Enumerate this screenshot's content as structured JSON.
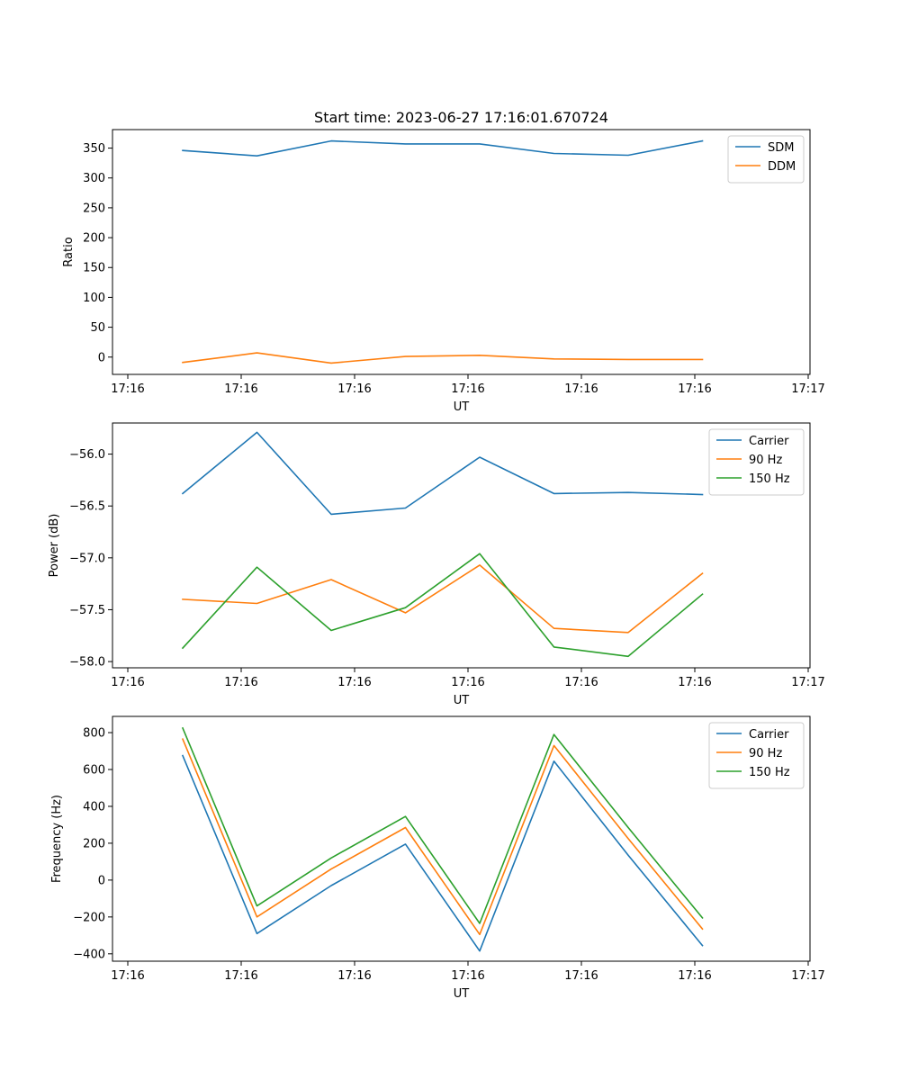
{
  "figure": {
    "title": "Start time: 2023-06-27 17:16:01.670724"
  },
  "chart_data": [
    {
      "type": "line",
      "title": "Start time: 2023-06-27 17:16:01.670724",
      "xlabel": "UT",
      "ylabel": "Ratio",
      "x_tick_labels": [
        "17:16",
        "17:16",
        "17:16",
        "17:16",
        "17:16",
        "17:16",
        "17:17"
      ],
      "y_ticks": [
        0,
        50,
        100,
        150,
        200,
        250,
        300,
        350
      ],
      "ylim": [
        -29,
        381
      ],
      "legend_position": "upper-right",
      "grid": false,
      "series": [
        {
          "name": "SDM",
          "color": "#1f77b4",
          "values": [
            346,
            337,
            362,
            357,
            357,
            341,
            338,
            362
          ]
        },
        {
          "name": "DDM",
          "color": "#ff7f0e",
          "values": [
            -9,
            7,
            -10,
            1,
            3,
            -3,
            -4,
            -4
          ]
        }
      ]
    },
    {
      "type": "line",
      "xlabel": "UT",
      "ylabel": "Power (dB)",
      "x_tick_labels": [
        "17:16",
        "17:16",
        "17:16",
        "17:16",
        "17:16",
        "17:16",
        "17:17"
      ],
      "y_ticks": [
        -58.0,
        -57.5,
        -57.0,
        -56.5,
        -56.0
      ],
      "y_tick_labels": [
        "−58.0",
        "−57.5",
        "−57.0",
        "−56.5",
        "−56.0"
      ],
      "ylim": [
        -58.06,
        -55.7
      ],
      "legend_position": "upper-right",
      "grid": false,
      "series": [
        {
          "name": "Carrier",
          "color": "#1f77b4",
          "values": [
            -56.38,
            -55.79,
            -56.58,
            -56.52,
            -56.03,
            -56.38,
            -56.37,
            -56.39
          ]
        },
        {
          "name": "90 Hz",
          "color": "#ff7f0e",
          "values": [
            -57.4,
            -57.44,
            -57.21,
            -57.53,
            -57.07,
            -57.68,
            -57.72,
            -57.15
          ]
        },
        {
          "name": "150 Hz",
          "color": "#2ca02c",
          "values": [
            -57.87,
            -57.09,
            -57.7,
            -57.48,
            -56.96,
            -57.86,
            -57.95,
            -57.35
          ]
        }
      ]
    },
    {
      "type": "line",
      "xlabel": "UT",
      "ylabel": "Frequency (Hz)",
      "x_tick_labels": [
        "17:16",
        "17:16",
        "17:16",
        "17:16",
        "17:16",
        "17:16",
        "17:17"
      ],
      "y_ticks": [
        -400,
        -200,
        0,
        200,
        400,
        600,
        800
      ],
      "y_tick_labels": [
        "−400",
        "−200",
        "0",
        "200",
        "400",
        "600",
        "800"
      ],
      "ylim": [
        -440,
        888
      ],
      "legend_position": "upper-right",
      "grid": false,
      "series": [
        {
          "name": "Carrier",
          "color": "#1f77b4",
          "values": [
            675,
            -290,
            -30,
            195,
            -385,
            645,
            135,
            -355
          ]
        },
        {
          "name": "90 Hz",
          "color": "#ff7f0e",
          "values": [
            765,
            -200,
            60,
            285,
            -295,
            730,
            225,
            -265
          ]
        },
        {
          "name": "150 Hz",
          "color": "#2ca02c",
          "values": [
            825,
            -140,
            120,
            345,
            -235,
            790,
            285,
            -205
          ]
        }
      ]
    }
  ]
}
